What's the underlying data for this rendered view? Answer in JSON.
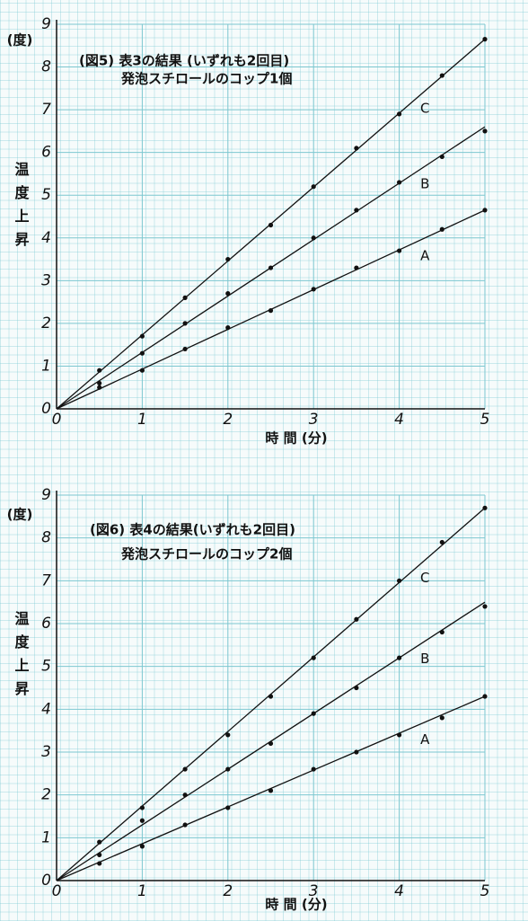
{
  "chart_data": [
    {
      "type": "scatter",
      "title": "(図5) 表3の結果 (いずれも2回目)",
      "subtitle": "発泡スチロールのコップ1個",
      "y_unit": "(度)",
      "y_label": "温度上昇",
      "x_label": "時 間 (分)",
      "x": [
        0.5,
        1,
        1.5,
        2,
        2.5,
        3,
        3.5,
        4,
        4.5,
        5
      ],
      "series": [
        {
          "name": "A",
          "color": "#111111",
          "values": [
            0.5,
            0.9,
            1.4,
            1.9,
            2.3,
            2.8,
            3.3,
            3.7,
            4.2,
            4.65
          ],
          "fit": {
            "x": [
              0,
              5
            ],
            "values": [
              0,
              4.65
            ]
          }
        },
        {
          "name": "B",
          "color": "#111111",
          "values": [
            0.6,
            1.3,
            2.0,
            2.7,
            3.3,
            4.0,
            4.65,
            5.3,
            5.9,
            6.5
          ],
          "fit": {
            "x": [
              0,
              5
            ],
            "values": [
              0,
              6.6
            ]
          }
        },
        {
          "name": "C",
          "color": "#111111",
          "values": [
            0.9,
            1.7,
            2.6,
            3.5,
            4.3,
            5.2,
            6.1,
            6.9,
            7.8,
            8.65
          ],
          "fit": {
            "x": [
              0,
              5
            ],
            "values": [
              0,
              8.65
            ]
          }
        }
      ],
      "xlim": [
        0,
        5
      ],
      "ylim": [
        0,
        9
      ],
      "xticks": [
        0,
        1,
        2,
        3,
        4,
        5
      ],
      "yticks": [
        0,
        1,
        2,
        3,
        4,
        5,
        6,
        7,
        8,
        9
      ],
      "grid": true
    },
    {
      "type": "scatter",
      "title": "(図6) 表4の結果(いずれも2回目)",
      "subtitle": "発泡スチロールのコップ2個",
      "y_unit": "(度)",
      "y_label": "温度上昇",
      "x_label": "時 間 (分)",
      "x": [
        0.5,
        1,
        1.5,
        2,
        2.5,
        3,
        3.5,
        4,
        4.5,
        5
      ],
      "series": [
        {
          "name": "A",
          "color": "#111111",
          "values": [
            0.4,
            0.8,
            1.3,
            1.7,
            2.1,
            2.6,
            3.0,
            3.4,
            3.8,
            4.3
          ],
          "fit": {
            "x": [
              0,
              5
            ],
            "values": [
              0,
              4.3
            ]
          }
        },
        {
          "name": "B",
          "color": "#111111",
          "values": [
            0.6,
            1.4,
            2.0,
            2.6,
            3.2,
            3.9,
            4.5,
            5.2,
            5.8,
            6.4
          ],
          "fit": {
            "x": [
              0,
              5
            ],
            "values": [
              0,
              6.5
            ]
          }
        },
        {
          "name": "C",
          "color": "#111111",
          "values": [
            0.9,
            1.7,
            2.6,
            3.4,
            4.3,
            5.2,
            6.1,
            7.0,
            7.9,
            8.7
          ],
          "fit": {
            "x": [
              0,
              5
            ],
            "values": [
              0,
              8.7
            ]
          }
        }
      ],
      "xlim": [
        0,
        5
      ],
      "ylim": [
        0,
        9
      ],
      "xticks": [
        0,
        1,
        2,
        3,
        4,
        5
      ],
      "yticks": [
        0,
        1,
        2,
        3,
        4,
        5,
        6,
        7,
        8,
        9
      ],
      "grid": true
    }
  ]
}
